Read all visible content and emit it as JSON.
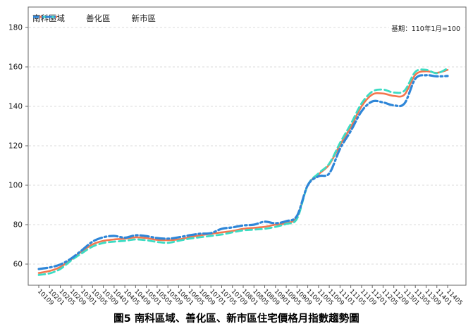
{
  "chart": {
    "caption": "圖5 南科區域、善化區、新市區住宅價格月指數趨勢圖",
    "base_note": "基期：110年1月=100",
    "colors": {
      "nanke": "#F4764E",
      "shanhua": "#3BDCC3",
      "xinshi": "#2E86D8",
      "grid": "#DBDBDB",
      "spine": "#666666",
      "tick_text": "#1A1A1A"
    }
  },
  "chart_data": {
    "type": "line",
    "title": "",
    "xlabel": "",
    "ylabel": "",
    "yticks": [
      60,
      80,
      100,
      120,
      140,
      160,
      180
    ],
    "ylim": [
      49,
      190
    ],
    "grid": "horizontal-dashed",
    "legend_position": "upper-left-inside",
    "base_period": "110年1月=100",
    "x": [
      "10109",
      "10201",
      "10205",
      "10209",
      "10301",
      "10305",
      "10309",
      "10401",
      "10405",
      "10409",
      "10501",
      "10505",
      "10509",
      "10601",
      "10605",
      "10609",
      "10701",
      "10705",
      "10709",
      "10801",
      "10805",
      "10809",
      "10901",
      "10905",
      "10909",
      "11001",
      "11005",
      "11009",
      "11101",
      "11105",
      "11109",
      "11201",
      "11205",
      "11209",
      "11301",
      "11305",
      "11309",
      "11401",
      "11405"
    ],
    "series": [
      {
        "name": "南科區域",
        "color_key": "nanke",
        "style": "solid",
        "values": [
          55.5,
          56.5,
          58.5,
          62.3,
          66.5,
          70.0,
          71.8,
          72.5,
          72.9,
          73.6,
          73.2,
          72.3,
          72.1,
          72.5,
          73.6,
          74.6,
          75.4,
          76.1,
          76.8,
          77.9,
          78.4,
          78.9,
          80.0,
          80.7,
          84.0,
          100.0,
          105.5,
          110.5,
          120.5,
          129.5,
          140.0,
          146.0,
          146.5,
          145.3,
          146.0,
          156.0,
          157.8,
          157.0,
          158.5
        ]
      },
      {
        "name": "善化區",
        "color_key": "shanhua",
        "style": "dashed",
        "values": [
          54.5,
          55.3,
          57.5,
          61.8,
          65.5,
          68.9,
          70.7,
          71.4,
          71.8,
          72.5,
          72.1,
          71.2,
          70.8,
          71.8,
          72.9,
          73.6,
          74.3,
          75.0,
          76.1,
          77.1,
          77.5,
          77.9,
          78.9,
          80.4,
          83.0,
          100.0,
          106.0,
          111.0,
          121.5,
          131.0,
          141.5,
          147.5,
          148.5,
          147.0,
          148.0,
          157.5,
          158.5,
          156.8,
          159.3
        ]
      },
      {
        "name": "新市區",
        "color_key": "xinshi",
        "style": "dashdot",
        "values": [
          57.5,
          58.3,
          59.8,
          62.8,
          67.0,
          71.4,
          73.6,
          74.3,
          73.4,
          74.6,
          74.2,
          73.2,
          72.9,
          73.6,
          74.6,
          75.4,
          75.7,
          77.9,
          78.6,
          79.6,
          80.0,
          81.5,
          80.7,
          81.8,
          84.5,
          100.0,
          104.5,
          106.0,
          118.5,
          127.5,
          137.5,
          142.5,
          142.0,
          140.5,
          141.5,
          154.0,
          155.8,
          155.2,
          155.4
        ]
      }
    ]
  }
}
